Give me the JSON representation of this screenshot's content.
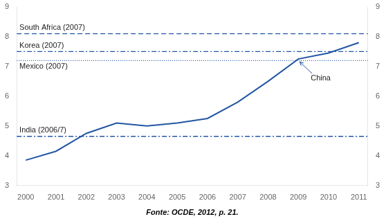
{
  "chart_data": {
    "type": "line",
    "x": [
      2000,
      2001,
      2002,
      2003,
      2004,
      2005,
      2006,
      2007,
      2008,
      2009,
      2010,
      2011
    ],
    "series": [
      {
        "name": "China",
        "values": [
          3.85,
          4.15,
          4.75,
          5.1,
          5.0,
          5.1,
          5.25,
          5.8,
          6.5,
          7.25,
          7.45,
          7.8
        ]
      }
    ],
    "color": "#2255A4",
    "reference_lines": [
      {
        "name": "South Africa (2007)",
        "value": 8.1,
        "line_style": "dashed"
      },
      {
        "name": "Korea (2007)",
        "value": 7.5,
        "line_style": "dashdot"
      },
      {
        "name": "Mexico (2007)",
        "value": 7.2,
        "line_style": "dotted"
      },
      {
        "name": "India (2006/7)",
        "value": 4.65,
        "line_style": "dashdot"
      }
    ],
    "xlim": [
      1999.7,
      2011.3
    ],
    "xticks": [
      2000,
      2001,
      2002,
      2003,
      2004,
      2005,
      2006,
      2007,
      2008,
      2009,
      2010,
      2011
    ],
    "ylim": [
      3,
      9
    ],
    "yticks": [
      3,
      4,
      5,
      6,
      7,
      8,
      9
    ],
    "y2lim": [
      3,
      9
    ],
    "y2ticks": [
      3,
      4,
      5,
      6,
      7,
      8,
      9
    ],
    "grid": false,
    "caption": "Fonte: OCDE, 2012, p. 21."
  }
}
